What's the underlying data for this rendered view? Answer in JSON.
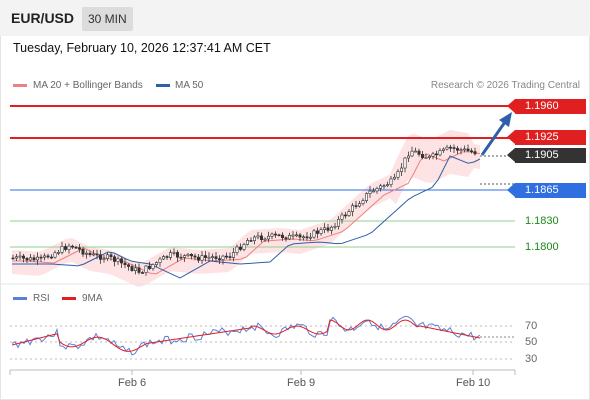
{
  "header": {
    "symbol": "EUR/USD",
    "timeframe": "30 MIN"
  },
  "timestamp": "Tuesday, February 10, 2026 12:37:41 AM CET",
  "legend": {
    "ma20": {
      "label": "MA 20 + Bollinger Bands",
      "color": "#f08080"
    },
    "ma50": {
      "label": "MA 50",
      "color": "#2f5fa8"
    }
  },
  "credit": "Research © 2026 Trading Central",
  "levels": {
    "r2": {
      "value": "1.1960",
      "color": "#e02020"
    },
    "r1": {
      "value": "1.1925",
      "color": "#e02020"
    },
    "last": {
      "value": "1.1905",
      "color": "#333333"
    },
    "pivot": {
      "value": "1.1865",
      "color": "#2f6fe0"
    },
    "s1": {
      "value": "1.1830",
      "color": "#1a8a1a"
    },
    "s2": {
      "value": "1.1800",
      "color": "#1a8a1a"
    }
  },
  "rsi_legend": {
    "rsi": {
      "label": "RSI",
      "color": "#5b7fd8"
    },
    "ma9": {
      "label": "9MA",
      "color": "#e02020"
    }
  },
  "rsi_levels": [
    "70",
    "50",
    "30"
  ],
  "x_labels": [
    "Feb 6",
    "Feb 9",
    "Feb 10"
  ]
}
